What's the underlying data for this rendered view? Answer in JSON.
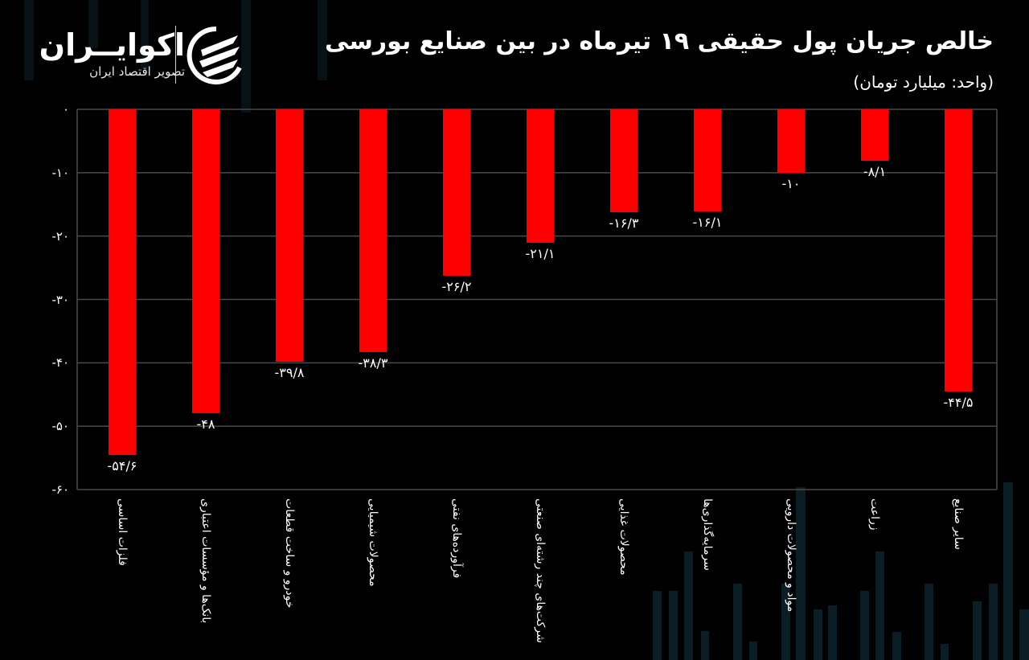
{
  "header": {
    "title": "خالص جریان پول حقیقی ۱۹ تیرماه در بین صنایع بورسی",
    "subtitle": "(واحد: میلیارد تومان)"
  },
  "logo": {
    "name": "اکوایــران",
    "tagline": "تصویر اقتصاد ایران"
  },
  "colors": {
    "background": "#000000",
    "bar": "#ff0000",
    "grid": "#4a4a4a",
    "text": "#ffffff"
  },
  "chart_data": {
    "type": "bar",
    "title": "خالص جریان پول حقیقی ۱۹ تیرماه در بین صنایع بورسی",
    "subtitle": "(واحد: میلیارد تومان)",
    "xlabel": "",
    "ylabel": "میلیارد تومان",
    "ylim": [
      -60,
      0
    ],
    "yticks": [
      0,
      -10,
      -20,
      -30,
      -40,
      -50,
      -60
    ],
    "ytick_labels": [
      "۰",
      "-۱۰",
      "-۲۰",
      "-۳۰",
      "-۴۰",
      "-۵۰",
      "-۶۰"
    ],
    "grid": true,
    "legend": null,
    "categories": [
      "فلزات اساسی",
      "بانک‌ها و مؤسسات اعتباری",
      "خودرو و ساخت قطعات",
      "محصولات شیمیایی",
      "فرآورده‌های نفتی",
      "شرکت‌های چند رشته‌ای صنعتی",
      "محصولات غذایی",
      "سرمایه‌گذاری‌ها",
      "مواد و محصولات دارویی",
      "زراعت",
      "سایر صنایع"
    ],
    "values": [
      -54.6,
      -48,
      -39.8,
      -38.3,
      -26.2,
      -21.1,
      -16.3,
      -16.1,
      -10,
      -8.1,
      -44.5
    ],
    "value_labels": [
      "-۵۴/۶",
      "-۴۸",
      "-۳۹/۸",
      "-۳۸/۳",
      "-۲۶/۲",
      "-۲۱/۱",
      "-۱۶/۳",
      "-۱۶/۱",
      "-۱۰",
      "-۸/۱",
      "-۴۴/۵"
    ]
  }
}
